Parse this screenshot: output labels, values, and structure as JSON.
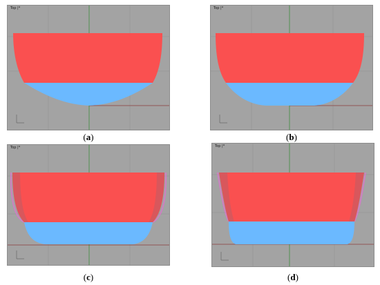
{
  "panels": [
    {
      "id": "a",
      "caption_open": "(",
      "caption_letter": "a",
      "caption_close": ")",
      "viewport_label": "Top |*",
      "hull": "round"
    },
    {
      "id": "b",
      "caption_open": "(",
      "caption_letter": "b",
      "caption_close": ")",
      "viewport_label": "Top |*",
      "hull": "round-wide"
    },
    {
      "id": "c",
      "caption_open": "(",
      "caption_letter": "c",
      "caption_close": ")",
      "viewport_label": "Top |*",
      "hull": "flat"
    },
    {
      "id": "d",
      "caption_open": "(",
      "caption_letter": "d",
      "caption_close": ")",
      "viewport_label": "Top |*",
      "hull": "flat-chine"
    }
  ],
  "colors": {
    "viewport_bg": "#a3a3a3",
    "grid_line": "#929292",
    "axis_green": "#3c8c3c",
    "axis_red": "#8c3c3c",
    "above_water": "#fa5050",
    "below_water": "#6bb9ff",
    "edge_pink": "#e070d0"
  }
}
